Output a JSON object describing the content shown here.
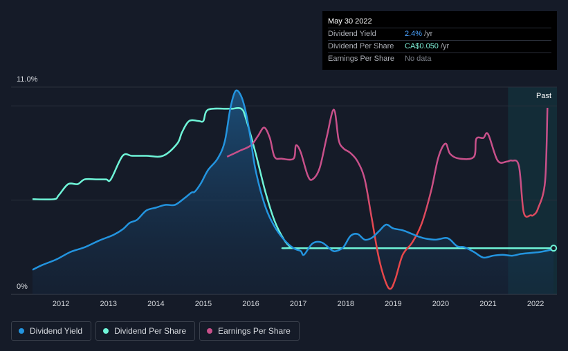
{
  "tooltip": {
    "date": "May 30 2022",
    "rows": [
      {
        "label": "Dividend Yield",
        "value": "2.4%",
        "unit": "/yr"
      },
      {
        "label": "Dividend Per Share",
        "value": "CA$0.050",
        "unit": "/yr"
      },
      {
        "label": "Earnings Per Share",
        "value": "No data",
        "unit": ""
      }
    ]
  },
  "legend": [
    {
      "label": "Dividend Yield",
      "color": "#2394df"
    },
    {
      "label": "Dividend Per Share",
      "color": "#6ff5d8"
    },
    {
      "label": "Earnings Per Share",
      "color": "#c8508a"
    }
  ],
  "colors": {
    "background": "#151b28",
    "yield": "#2394df",
    "dps": "#6ff5d8",
    "eps_high": "#c8508a",
    "eps_low": "#e8474a",
    "past_band": "#123a44"
  },
  "chart_data": {
    "type": "line",
    "y_top_label": "11.0%",
    "y_bottom_label": "0%",
    "past_label": "Past",
    "ylim": [
      0,
      11
    ],
    "xlim": [
      2011.4,
      2022.45
    ],
    "x_ticks": [
      "2012",
      "2013",
      "2014",
      "2015",
      "2016",
      "2017",
      "2018",
      "2019",
      "2020",
      "2021",
      "2022"
    ],
    "past_band_start": 2021.42,
    "grid": true,
    "series": [
      {
        "name": "Dividend Yield",
        "x": [
          2011.4,
          2011.6,
          2011.9,
          2012.2,
          2012.5,
          2012.8,
          2013.1,
          2013.3,
          2013.45,
          2013.6,
          2013.8,
          2014.0,
          2014.2,
          2014.4,
          2014.6,
          2014.75,
          2014.82,
          2014.95,
          2015.1,
          2015.3,
          2015.45,
          2015.57,
          2015.68,
          2015.8,
          2015.9,
          2016.0,
          2016.1,
          2016.3,
          2016.5,
          2016.7,
          2016.9,
          2017.05,
          2017.12,
          2017.3,
          2017.5,
          2017.7,
          2017.8,
          2017.95,
          2018.1,
          2018.25,
          2018.4,
          2018.55,
          2018.7,
          2018.85,
          2019.0,
          2019.2,
          2019.4,
          2019.55,
          2019.7,
          2019.9,
          2020.1,
          2020.2,
          2020.35,
          2020.5,
          2020.7,
          2020.9,
          2021.1,
          2021.3,
          2021.5,
          2021.7,
          2021.9,
          2022.1,
          2022.3,
          2022.38
        ],
        "values": [
          1.3,
          1.55,
          1.85,
          2.25,
          2.5,
          2.85,
          3.15,
          3.45,
          3.8,
          3.95,
          4.45,
          4.6,
          4.75,
          4.75,
          5.1,
          5.4,
          5.45,
          5.9,
          6.6,
          7.2,
          8.1,
          9.9,
          10.8,
          10.5,
          9.6,
          8.2,
          6.6,
          4.7,
          3.6,
          2.9,
          2.45,
          2.3,
          2.1,
          2.7,
          2.75,
          2.35,
          2.3,
          2.5,
          3.1,
          3.2,
          2.9,
          3.0,
          3.35,
          3.7,
          3.5,
          3.4,
          3.2,
          3.05,
          2.95,
          2.9,
          3.0,
          2.9,
          2.55,
          2.5,
          2.25,
          1.95,
          2.05,
          2.1,
          2.05,
          2.15,
          2.2,
          2.25,
          2.35,
          2.4
        ]
      },
      {
        "name": "Dividend Per Share",
        "x": [
          2011.4,
          2011.85,
          2011.95,
          2012.15,
          2012.35,
          2012.5,
          2012.75,
          2012.95,
          2013.05,
          2013.3,
          2013.5,
          2013.8,
          2014.15,
          2014.45,
          2014.55,
          2014.7,
          2014.9,
          2015.0,
          2015.1,
          2015.5,
          2015.6,
          2015.8,
          2015.9,
          2016.1,
          2016.3,
          2016.5,
          2016.7,
          2016.85,
          2017.0,
          2021.0,
          2022.38
        ],
        "values": [
          5.05,
          5.05,
          5.25,
          5.85,
          5.85,
          6.1,
          6.1,
          6.1,
          6.1,
          7.35,
          7.35,
          7.35,
          7.35,
          8.0,
          8.6,
          9.2,
          9.2,
          9.2,
          9.8,
          9.85,
          9.85,
          9.85,
          9.3,
          7.5,
          5.5,
          3.9,
          2.9,
          2.5,
          2.45,
          2.45,
          2.45
        ]
      },
      {
        "name": "Earnings Per Share",
        "x": [
          2015.5,
          2015.75,
          2016.0,
          2016.15,
          2016.28,
          2016.4,
          2016.5,
          2016.65,
          2016.9,
          2016.95,
          2017.05,
          2017.2,
          2017.3,
          2017.45,
          2017.6,
          2017.75,
          2017.85,
          2017.95,
          2018.1,
          2018.25,
          2018.4,
          2018.55,
          2018.7,
          2018.85,
          2018.95,
          2019.05,
          2019.2,
          2019.4,
          2019.6,
          2019.8,
          2019.95,
          2020.1,
          2020.2,
          2020.4,
          2020.7,
          2020.75,
          2020.9,
          2021.0,
          2021.2,
          2021.4,
          2021.5,
          2021.65,
          2021.75,
          2021.9,
          2021.95,
          2022.05,
          2022.2,
          2022.25
        ],
        "values": [
          7.3,
          7.6,
          7.9,
          8.4,
          8.85,
          8.3,
          7.3,
          7.2,
          7.2,
          7.9,
          7.55,
          6.3,
          6.1,
          6.7,
          8.35,
          9.8,
          8.2,
          7.75,
          7.5,
          7.05,
          6.1,
          4.0,
          1.9,
          0.6,
          0.3,
          0.85,
          2.1,
          2.75,
          3.75,
          5.5,
          7.25,
          8.0,
          7.45,
          7.2,
          7.3,
          8.25,
          8.3,
          8.5,
          7.1,
          7.05,
          7.1,
          6.8,
          4.35,
          4.2,
          4.2,
          4.55,
          6.0,
          9.9
        ]
      }
    ]
  }
}
